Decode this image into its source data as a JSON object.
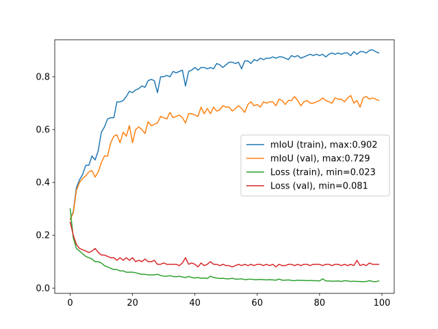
{
  "chart_data": {
    "type": "line",
    "title": "",
    "xlabel": "",
    "ylabel": "",
    "xlim": [
      -4.95,
      103.95
    ],
    "ylim": [
      -0.02,
      0.94
    ],
    "xticks": [
      0,
      20,
      40,
      60,
      80,
      100
    ],
    "yticks": [
      0.0,
      0.2,
      0.4,
      0.6,
      0.8
    ],
    "ytick_labels": [
      "0.0",
      "0.2",
      "0.4",
      "0.6",
      "0.8"
    ],
    "grid": false,
    "legend_position": "center-right",
    "series": [
      {
        "name": "mIoU (train), max:0.902",
        "color": "#1f77b4",
        "x": [
          0,
          1,
          2,
          3,
          4,
          5,
          6,
          7,
          8,
          9,
          10,
          11,
          12,
          13,
          14,
          15,
          16,
          17,
          18,
          19,
          20,
          21,
          22,
          23,
          24,
          25,
          26,
          27,
          28,
          29,
          30,
          31,
          32,
          33,
          34,
          35,
          36,
          37,
          38,
          39,
          40,
          41,
          42,
          43,
          44,
          45,
          46,
          47,
          48,
          49,
          50,
          51,
          52,
          53,
          54,
          55,
          56,
          57,
          58,
          59,
          60,
          61,
          62,
          63,
          64,
          65,
          66,
          67,
          68,
          69,
          70,
          71,
          72,
          73,
          74,
          75,
          76,
          77,
          78,
          79,
          80,
          81,
          82,
          83,
          84,
          85,
          86,
          87,
          88,
          89,
          90,
          91,
          92,
          93,
          94,
          95,
          96,
          97,
          98,
          99
        ],
        "values": [
          0.26,
          0.29,
          0.38,
          0.41,
          0.43,
          0.465,
          0.465,
          0.5,
          0.485,
          0.52,
          0.59,
          0.61,
          0.64,
          0.645,
          0.645,
          0.705,
          0.705,
          0.71,
          0.725,
          0.745,
          0.74,
          0.75,
          0.755,
          0.765,
          0.76,
          0.785,
          0.79,
          0.785,
          0.74,
          0.8,
          0.8,
          0.805,
          0.8,
          0.82,
          0.815,
          0.82,
          0.825,
          0.765,
          0.82,
          0.825,
          0.835,
          0.825,
          0.835,
          0.835,
          0.83,
          0.835,
          0.83,
          0.85,
          0.845,
          0.835,
          0.845,
          0.855,
          0.855,
          0.85,
          0.855,
          0.83,
          0.86,
          0.86,
          0.85,
          0.865,
          0.86,
          0.87,
          0.865,
          0.87,
          0.87,
          0.875,
          0.87,
          0.875,
          0.875,
          0.87,
          0.865,
          0.88,
          0.875,
          0.88,
          0.87,
          0.875,
          0.88,
          0.885,
          0.88,
          0.885,
          0.88,
          0.885,
          0.875,
          0.885,
          0.89,
          0.885,
          0.89,
          0.885,
          0.89,
          0.89,
          0.88,
          0.895,
          0.885,
          0.895,
          0.895,
          0.89,
          0.9,
          0.902,
          0.895,
          0.89
        ]
      },
      {
        "name": "mIoU (val), max:0.729",
        "color": "#ff7f0e",
        "x": [
          0,
          1,
          2,
          3,
          4,
          5,
          6,
          7,
          8,
          9,
          10,
          11,
          12,
          13,
          14,
          15,
          16,
          17,
          18,
          19,
          20,
          21,
          22,
          23,
          24,
          25,
          26,
          27,
          28,
          29,
          30,
          31,
          32,
          33,
          34,
          35,
          36,
          37,
          38,
          39,
          40,
          41,
          42,
          43,
          44,
          45,
          46,
          47,
          48,
          49,
          50,
          51,
          52,
          53,
          54,
          55,
          56,
          57,
          58,
          59,
          60,
          61,
          62,
          63,
          64,
          65,
          66,
          67,
          68,
          69,
          70,
          71,
          72,
          73,
          74,
          75,
          76,
          77,
          78,
          79,
          80,
          81,
          82,
          83,
          84,
          85,
          86,
          87,
          88,
          89,
          90,
          91,
          92,
          93,
          94,
          95,
          96,
          97,
          98,
          99
        ],
        "values": [
          0.26,
          0.285,
          0.37,
          0.4,
          0.415,
          0.425,
          0.44,
          0.445,
          0.42,
          0.44,
          0.475,
          0.5,
          0.5,
          0.55,
          0.575,
          0.58,
          0.55,
          0.59,
          0.575,
          0.615,
          0.55,
          0.6,
          0.61,
          0.6,
          0.585,
          0.63,
          0.615,
          0.62,
          0.625,
          0.65,
          0.645,
          0.64,
          0.665,
          0.645,
          0.65,
          0.655,
          0.645,
          0.625,
          0.66,
          0.66,
          0.655,
          0.65,
          0.685,
          0.66,
          0.68,
          0.66,
          0.685,
          0.67,
          0.675,
          0.69,
          0.685,
          0.685,
          0.67,
          0.68,
          0.69,
          0.68,
          0.665,
          0.695,
          0.705,
          0.69,
          0.695,
          0.685,
          0.705,
          0.7,
          0.705,
          0.705,
          0.69,
          0.715,
          0.71,
          0.695,
          0.71,
          0.71,
          0.725,
          0.71,
          0.69,
          0.705,
          0.71,
          0.7,
          0.7,
          0.705,
          0.71,
          0.72,
          0.71,
          0.705,
          0.7,
          0.72,
          0.715,
          0.715,
          0.705,
          0.72,
          0.729,
          0.7,
          0.71,
          0.685,
          0.72,
          0.725,
          0.715,
          0.72,
          0.715,
          0.71
        ]
      },
      {
        "name": "Loss (train), min=0.023",
        "color": "#2ca02c",
        "x": [
          0,
          1,
          2,
          3,
          4,
          5,
          6,
          7,
          8,
          9,
          10,
          11,
          12,
          13,
          14,
          15,
          16,
          17,
          18,
          19,
          20,
          21,
          22,
          23,
          24,
          25,
          26,
          27,
          28,
          29,
          30,
          31,
          32,
          33,
          34,
          35,
          36,
          37,
          38,
          39,
          40,
          41,
          42,
          43,
          44,
          45,
          46,
          47,
          48,
          49,
          50,
          51,
          52,
          53,
          54,
          55,
          56,
          57,
          58,
          59,
          60,
          61,
          62,
          63,
          64,
          65,
          66,
          67,
          68,
          69,
          70,
          71,
          72,
          73,
          74,
          75,
          76,
          77,
          78,
          79,
          80,
          81,
          82,
          83,
          84,
          85,
          86,
          87,
          88,
          89,
          90,
          91,
          92,
          93,
          94,
          95,
          96,
          97,
          98,
          99
        ],
        "values": [
          0.3,
          0.19,
          0.15,
          0.14,
          0.13,
          0.12,
          0.115,
          0.11,
          0.1,
          0.1,
          0.095,
          0.085,
          0.08,
          0.075,
          0.07,
          0.07,
          0.065,
          0.065,
          0.06,
          0.06,
          0.06,
          0.058,
          0.055,
          0.052,
          0.052,
          0.05,
          0.05,
          0.05,
          0.052,
          0.048,
          0.045,
          0.045,
          0.047,
          0.044,
          0.043,
          0.045,
          0.042,
          0.04,
          0.044,
          0.04,
          0.038,
          0.04,
          0.037,
          0.038,
          0.036,
          0.045,
          0.04,
          0.038,
          0.036,
          0.037,
          0.035,
          0.035,
          0.037,
          0.034,
          0.034,
          0.035,
          0.032,
          0.033,
          0.034,
          0.032,
          0.032,
          0.033,
          0.032,
          0.031,
          0.032,
          0.031,
          0.03,
          0.034,
          0.03,
          0.03,
          0.031,
          0.029,
          0.028,
          0.03,
          0.029,
          0.029,
          0.028,
          0.029,
          0.028,
          0.028,
          0.027,
          0.035,
          0.027,
          0.027,
          0.026,
          0.026,
          0.027,
          0.025,
          0.028,
          0.027,
          0.025,
          0.026,
          0.025,
          0.025,
          0.024,
          0.025,
          0.028,
          0.025,
          0.024,
          0.027
        ]
      },
      {
        "name": "Loss (val), min=0.081",
        "color": "#d62728",
        "x": [
          0,
          1,
          2,
          3,
          4,
          5,
          6,
          7,
          8,
          9,
          10,
          11,
          12,
          13,
          14,
          15,
          16,
          17,
          18,
          19,
          20,
          21,
          22,
          23,
          24,
          25,
          26,
          27,
          28,
          29,
          30,
          31,
          32,
          33,
          34,
          35,
          36,
          37,
          38,
          39,
          40,
          41,
          42,
          43,
          44,
          45,
          46,
          47,
          48,
          49,
          50,
          51,
          52,
          53,
          54,
          55,
          56,
          57,
          58,
          59,
          60,
          61,
          62,
          63,
          64,
          65,
          66,
          67,
          68,
          69,
          70,
          71,
          72,
          73,
          74,
          75,
          76,
          77,
          78,
          79,
          80,
          81,
          82,
          83,
          84,
          85,
          86,
          87,
          88,
          89,
          90,
          91,
          92,
          93,
          94,
          95,
          96,
          97,
          98,
          99
        ],
        "values": [
          0.25,
          0.2,
          0.165,
          0.15,
          0.145,
          0.14,
          0.135,
          0.14,
          0.15,
          0.135,
          0.125,
          0.125,
          0.12,
          0.115,
          0.115,
          0.105,
          0.115,
          0.105,
          0.115,
          0.105,
          0.115,
          0.1,
          0.105,
          0.1,
          0.11,
          0.1,
          0.1,
          0.105,
          0.09,
          0.09,
          0.095,
          0.09,
          0.09,
          0.09,
          0.09,
          0.085,
          0.095,
          0.115,
          0.09,
          0.095,
          0.09,
          0.08,
          0.095,
          0.085,
          0.09,
          0.1,
          0.09,
          0.09,
          0.085,
          0.09,
          0.085,
          0.085,
          0.08,
          0.085,
          0.09,
          0.085,
          0.09,
          0.085,
          0.09,
          0.085,
          0.09,
          0.09,
          0.085,
          0.09,
          0.085,
          0.09,
          0.08,
          0.09,
          0.085,
          0.085,
          0.09,
          0.09,
          0.085,
          0.09,
          0.085,
          0.09,
          0.09,
          0.085,
          0.09,
          0.09,
          0.09,
          0.085,
          0.09,
          0.09,
          0.085,
          0.09,
          0.09,
          0.085,
          0.09,
          0.085,
          0.09,
          0.085,
          0.105,
          0.085,
          0.09,
          0.085,
          0.095,
          0.09,
          0.09,
          0.09
        ]
      }
    ]
  }
}
